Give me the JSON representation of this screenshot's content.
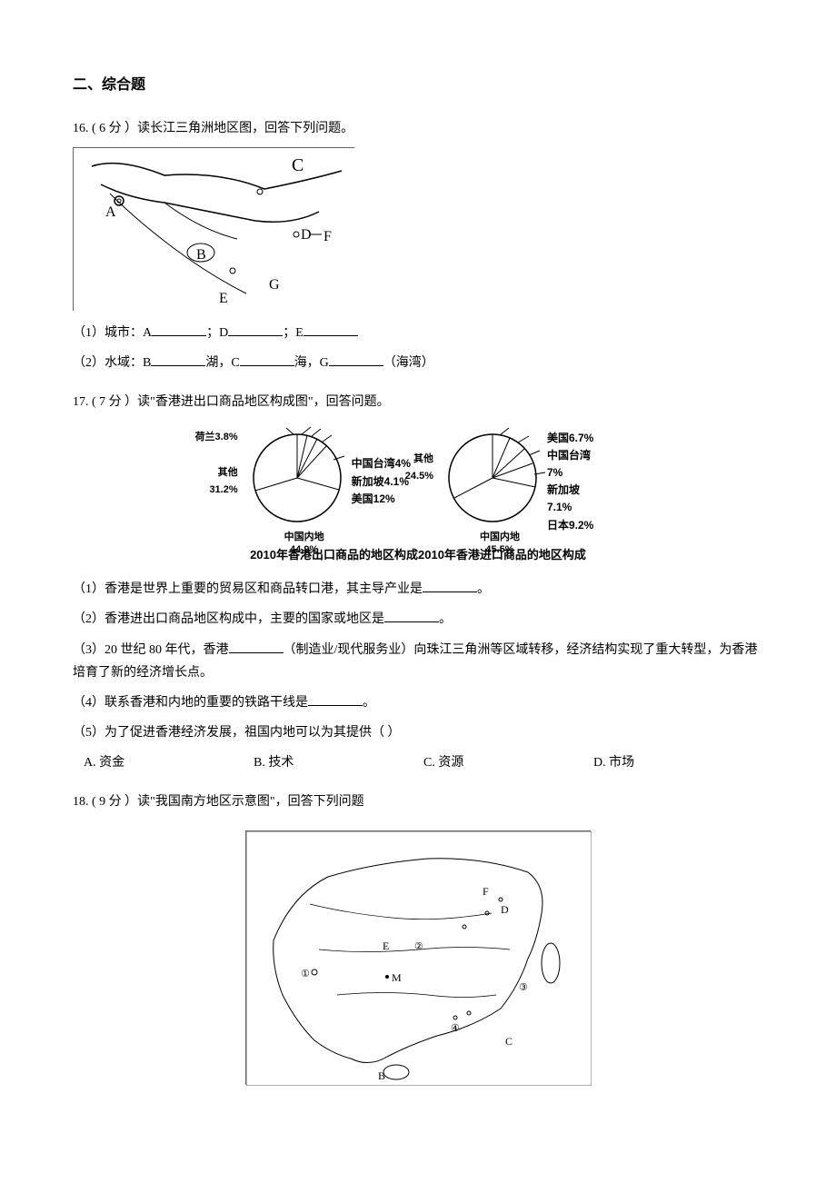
{
  "section_title": "二、综合题",
  "q16": {
    "prefix": "16. ( 6 分 ）",
    "stem": "读长江三角洲地区图，回答下列问题。",
    "map_letters": [
      "A",
      "B",
      "C",
      "D",
      "E",
      "F",
      "G"
    ],
    "sub1_label": "（1）城市：A",
    "sub1_mid1": "；D",
    "sub1_mid2": "；E",
    "sub2_label": "（2）水域：B",
    "sub2_mid1": "湖，C",
    "sub2_mid2": "海，G",
    "sub2_end": "（海湾）"
  },
  "q17": {
    "prefix": "17. ( 7 分 ）",
    "stem": "读\"香港进出口商品地区构成图\"，回答问题。",
    "export_chart": {
      "type": "pie",
      "title_segment": "2010年香港出口商品的地区构成",
      "background_color": "#ffffff",
      "slice_stroke": "#000000",
      "slices": [
        {
          "label": "荷兰3.8%",
          "value": 3.8
        },
        {
          "label": "中国台湾4%",
          "value": 4.0
        },
        {
          "label": "新加坡4.1%",
          "value": 4.1
        },
        {
          "label": "美国12%",
          "value": 12.0
        },
        {
          "label": "其他31.2%",
          "value": 31.2
        },
        {
          "label": "中国内地 44.9%",
          "value": 44.9
        }
      ],
      "left_label": "其他31.2%",
      "bottom_label": "中国内地\n44.9%",
      "right_labels": [
        "荷兰3.8%",
        "中国台湾4%",
        "新加坡4.1%",
        "美国12%"
      ]
    },
    "import_chart": {
      "type": "pie",
      "title_segment": "2010年香港进口商品的地区构成",
      "background_color": "#ffffff",
      "slice_stroke": "#000000",
      "slices": [
        {
          "label": "美国6.7%",
          "value": 6.7
        },
        {
          "label": "中国台湾 7%",
          "value": 7.0
        },
        {
          "label": "新加坡 7.1%",
          "value": 7.1
        },
        {
          "label": "日本9.2%",
          "value": 9.2
        },
        {
          "label": "其他 24.5%",
          "value": 24.5
        },
        {
          "label": "中国内地 45.5%",
          "value": 45.5
        }
      ],
      "left_label": "其他\n24.5%",
      "bottom_label": "中国内地\n45.5%",
      "right_labels": [
        "美国6.7%",
        "中国台湾\n7%",
        "新加坡\n7.1%",
        "日本9.2%"
      ]
    },
    "sub1": "（1）香港是世界上重要的贸易区和商品转口港，其主导产业是",
    "sub1_end": "。",
    "sub2": "（2）香港进出口商品地区构成中，主要的国家或地区是",
    "sub2_end": "。",
    "sub3": "（3）20 世纪 80 年代，香港",
    "sub3_mid": "（制造业/现代服务业）向珠江三角洲等区域转移，经济结构实现了重大转型，为香港培育了新的经济增长点。",
    "sub4": "（4）联系香港和内地的重要的铁路干线是",
    "sub4_end": "。",
    "sub5": "（5）为了促进香港经济发展，祖国内地可以为其提供（   ）",
    "options": {
      "A": "A. 资金",
      "B": "B. 技术",
      "C": "C. 资源",
      "D": "D. 市场"
    }
  },
  "q18": {
    "prefix": "18. ( 9 分 ）",
    "stem": "读\"我国南方地区示意图\"，回答下列问题",
    "map_labels": [
      "B",
      "C",
      "D",
      "E",
      "F",
      "M",
      "①",
      "②",
      "③",
      "④"
    ]
  }
}
